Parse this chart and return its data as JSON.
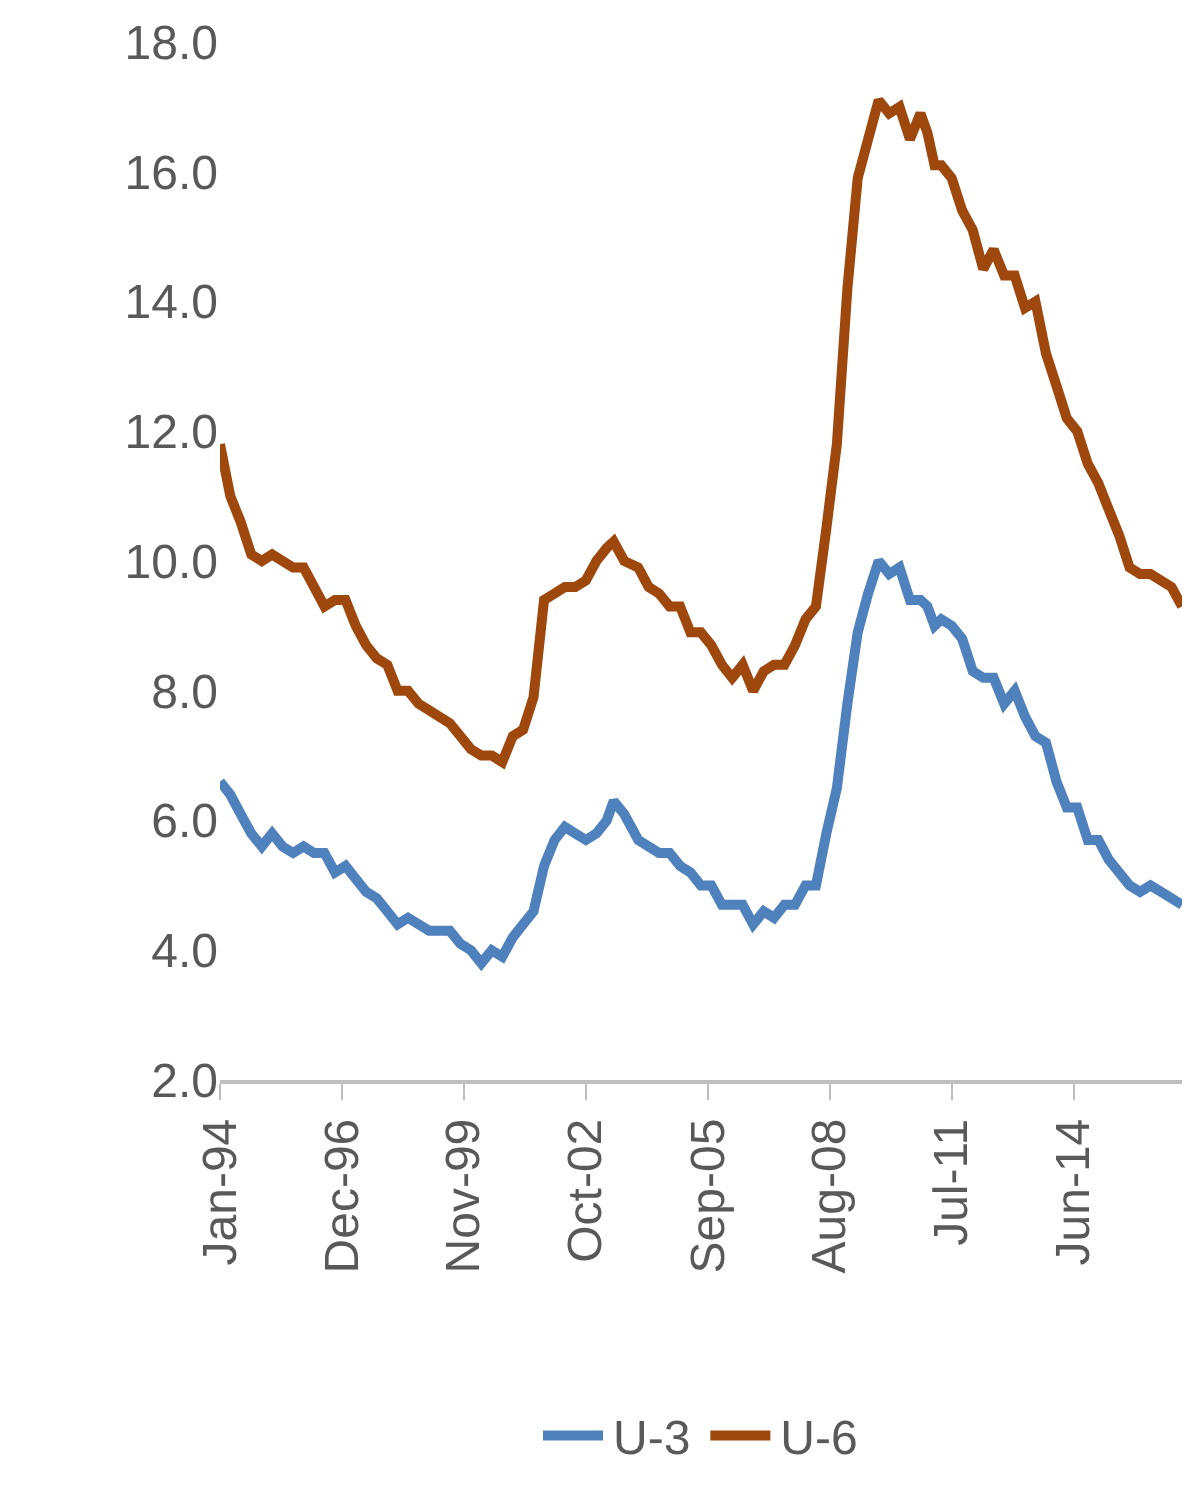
{
  "chart_data": {
    "type": "line",
    "xlim": [
      "1994-01",
      "2017-01"
    ],
    "xticks": [
      {
        "value": "1994-01",
        "label": "Jan-94"
      },
      {
        "value": "1996-12",
        "label": "Dec-96"
      },
      {
        "value": "1999-11",
        "label": "Nov-99"
      },
      {
        "value": "2002-10",
        "label": "Oct-02"
      },
      {
        "value": "2005-09",
        "label": "Sep-05"
      },
      {
        "value": "2008-08",
        "label": "Aug-08"
      },
      {
        "value": "2011-07",
        "label": "Jul-11"
      },
      {
        "value": "2014-06",
        "label": "Jun-14"
      }
    ],
    "ylim": [
      2,
      18
    ],
    "yticks": [
      {
        "value": 2,
        "label": "2.0"
      },
      {
        "value": 4,
        "label": "4.0"
      },
      {
        "value": 6,
        "label": "6.0"
      },
      {
        "value": 8,
        "label": "8.0"
      },
      {
        "value": 10,
        "label": "10.0"
      },
      {
        "value": 12,
        "label": "12.0"
      },
      {
        "value": 14,
        "label": "14.0"
      },
      {
        "value": 16,
        "label": "16.0"
      },
      {
        "value": 18,
        "label": "18.0"
      }
    ],
    "x": [
      "1994-01",
      "1994-04",
      "1994-07",
      "1994-10",
      "1995-01",
      "1995-04",
      "1995-07",
      "1995-10",
      "1996-01",
      "1996-04",
      "1996-07",
      "1996-10",
      "1997-01",
      "1997-04",
      "1997-07",
      "1997-10",
      "1998-01",
      "1998-04",
      "1998-07",
      "1998-10",
      "1999-01",
      "1999-04",
      "1999-07",
      "1999-10",
      "2000-01",
      "2000-04",
      "2000-07",
      "2000-10",
      "2001-01",
      "2001-04",
      "2001-07",
      "2001-10",
      "2002-01",
      "2002-04",
      "2002-07",
      "2002-10",
      "2003-01",
      "2003-04",
      "2003-06",
      "2003-09",
      "2004-01",
      "2004-04",
      "2004-07",
      "2004-10",
      "2005-01",
      "2005-04",
      "2005-07",
      "2005-10",
      "2006-01",
      "2006-04",
      "2006-07",
      "2006-10",
      "2007-01",
      "2007-04",
      "2007-07",
      "2007-10",
      "2008-01",
      "2008-04",
      "2008-07",
      "2008-10",
      "2009-01",
      "2009-04",
      "2009-07",
      "2009-10",
      "2010-01",
      "2010-04",
      "2010-07",
      "2010-10",
      "2010-12",
      "2011-02",
      "2011-04",
      "2011-07",
      "2011-10",
      "2012-01",
      "2012-04",
      "2012-07",
      "2012-10",
      "2013-01",
      "2013-04",
      "2013-07",
      "2013-10",
      "2014-01",
      "2014-04",
      "2014-07",
      "2014-10",
      "2015-01",
      "2015-04",
      "2015-07",
      "2015-10",
      "2016-01",
      "2016-04",
      "2016-07",
      "2016-10",
      "2017-01"
    ],
    "series": [
      {
        "name": "U-3",
        "color": "#4f81bd",
        "values": [
          6.6,
          6.4,
          6.1,
          5.8,
          5.6,
          5.8,
          5.6,
          5.5,
          5.6,
          5.5,
          5.5,
          5.2,
          5.3,
          5.1,
          4.9,
          4.8,
          4.6,
          4.4,
          4.5,
          4.4,
          4.3,
          4.3,
          4.3,
          4.1,
          4.0,
          3.8,
          4.0,
          3.9,
          4.2,
          4.4,
          4.6,
          5.3,
          5.7,
          5.9,
          5.8,
          5.7,
          5.8,
          6.0,
          6.3,
          6.1,
          5.7,
          5.6,
          5.5,
          5.5,
          5.3,
          5.2,
          5.0,
          5.0,
          4.7,
          4.7,
          4.7,
          4.4,
          4.6,
          4.5,
          4.7,
          4.7,
          5.0,
          5.0,
          5.8,
          6.5,
          7.8,
          8.9,
          9.5,
          10.0,
          9.8,
          9.9,
          9.4,
          9.4,
          9.3,
          9.0,
          9.1,
          9.0,
          8.8,
          8.3,
          8.2,
          8.2,
          7.8,
          8.0,
          7.6,
          7.3,
          7.2,
          6.6,
          6.2,
          6.2,
          5.7,
          5.7,
          5.4,
          5.2,
          5.0,
          4.9,
          5.0,
          4.9,
          4.8,
          4.7
        ]
      },
      {
        "name": "U-6",
        "color": "#9e480e",
        "values": [
          11.8,
          11.0,
          10.6,
          10.1,
          10.0,
          10.1,
          10.0,
          9.9,
          9.9,
          9.6,
          9.3,
          9.4,
          9.4,
          9.0,
          8.7,
          8.5,
          8.4,
          8.0,
          8.0,
          7.8,
          7.7,
          7.6,
          7.5,
          7.3,
          7.1,
          7.0,
          7.0,
          6.9,
          7.3,
          7.4,
          7.9,
          9.4,
          9.5,
          9.6,
          9.6,
          9.7,
          10.0,
          10.2,
          10.3,
          10.0,
          9.9,
          9.6,
          9.5,
          9.3,
          9.3,
          8.9,
          8.9,
          8.7,
          8.4,
          8.2,
          8.4,
          8.0,
          8.3,
          8.4,
          8.4,
          8.7,
          9.1,
          9.3,
          10.5,
          11.8,
          14.2,
          15.9,
          16.5,
          17.1,
          16.9,
          17.0,
          16.5,
          16.9,
          16.6,
          16.1,
          16.1,
          15.9,
          15.4,
          15.1,
          14.5,
          14.8,
          14.4,
          14.4,
          13.9,
          14.0,
          13.2,
          12.7,
          12.2,
          12.0,
          11.5,
          11.2,
          10.8,
          10.4,
          9.9,
          9.8,
          9.8,
          9.7,
          9.6,
          9.3
        ]
      }
    ],
    "grid": false,
    "legend": "bottom",
    "line_style": "solid",
    "marker": "none"
  }
}
